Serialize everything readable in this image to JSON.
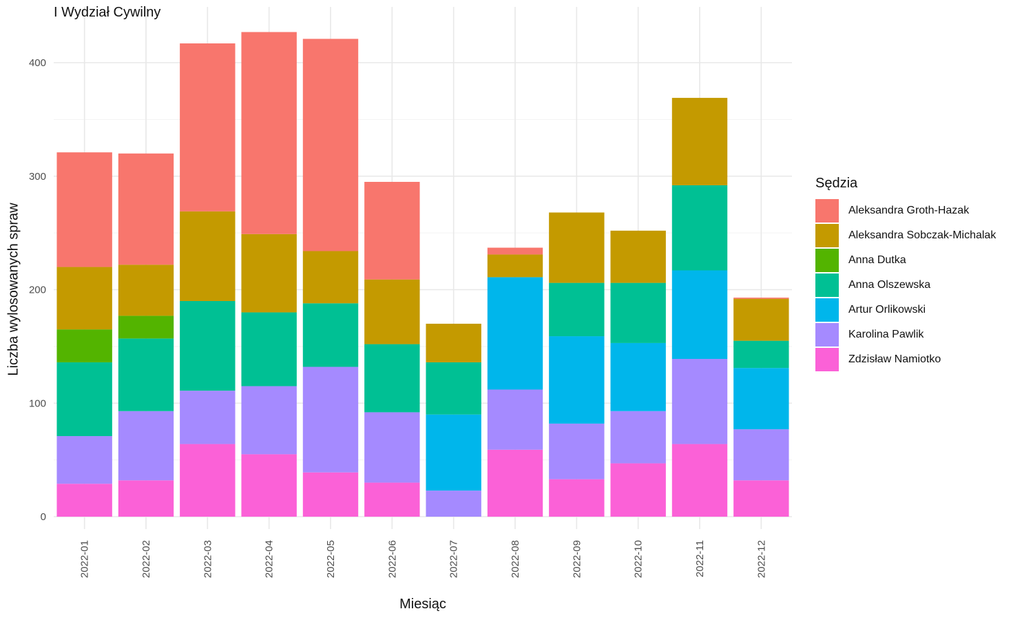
{
  "chart_data": {
    "type": "bar",
    "stacked": true,
    "title": "I Wydział Cywilny",
    "xlabel": "Miesiąc",
    "ylabel": "Liczba wylosowanych spraw",
    "ylim": [
      0,
      430
    ],
    "yticks": [
      0,
      100,
      200,
      300,
      400
    ],
    "grid": true,
    "legend_title": "Sędzia",
    "legend_position": "right",
    "categories": [
      "2022-01",
      "2022-02",
      "2022-03",
      "2022-04",
      "2022-05",
      "2022-06",
      "2022-07",
      "2022-08",
      "2022-09",
      "2022-10",
      "2022-11",
      "2022-12"
    ],
    "series": [
      {
        "name": "Aleksandra Groth-Hazak",
        "color": "#F8766D",
        "values": [
          101,
          98,
          148,
          178,
          187,
          86,
          0,
          6,
          0,
          0,
          0,
          1
        ]
      },
      {
        "name": "Aleksandra Sobczak-Michalak",
        "color": "#C49A00",
        "values": [
          55,
          45,
          79,
          69,
          46,
          57,
          34,
          20,
          62,
          46,
          77,
          37
        ]
      },
      {
        "name": "Anna Dutka",
        "color": "#53B400",
        "values": [
          29,
          20,
          0,
          0,
          0,
          0,
          0,
          0,
          0,
          0,
          0,
          0
        ]
      },
      {
        "name": "Anna Olszewska",
        "color": "#00C094",
        "values": [
          65,
          64,
          79,
          65,
          56,
          60,
          46,
          0,
          47,
          53,
          75,
          24
        ]
      },
      {
        "name": "Artur Orlikowski",
        "color": "#00B6EB",
        "values": [
          0,
          0,
          0,
          0,
          0,
          0,
          67,
          99,
          77,
          60,
          78,
          54
        ]
      },
      {
        "name": "Karolina Pawlik",
        "color": "#A58AFF",
        "values": [
          42,
          61,
          47,
          60,
          93,
          62,
          23,
          53,
          49,
          46,
          75,
          45
        ]
      },
      {
        "name": "Zdzisław Namiotko",
        "color": "#FB61D7",
        "values": [
          29,
          32,
          64,
          55,
          39,
          30,
          0,
          59,
          33,
          47,
          64,
          32
        ]
      }
    ]
  }
}
